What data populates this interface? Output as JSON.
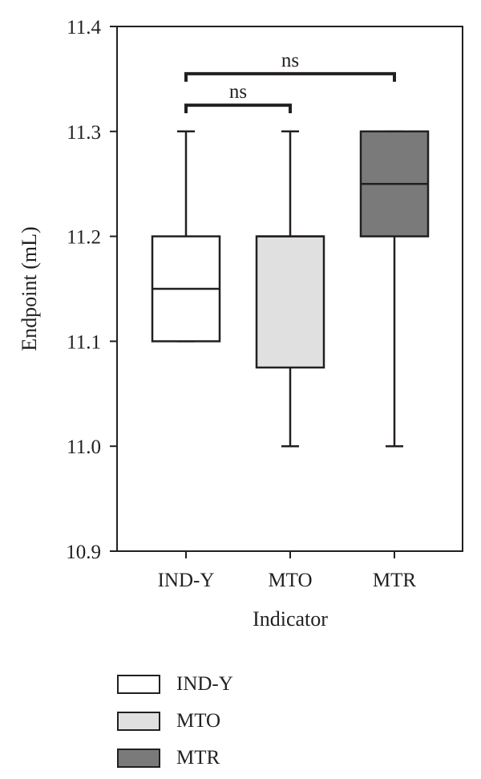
{
  "chart_data": {
    "type": "box",
    "ylabel": "Endpoint (mL)",
    "xlabel": "Indicator",
    "ylim": [
      10.9,
      11.4
    ],
    "yticks": [
      "10.9",
      "11.0",
      "11.1",
      "11.2",
      "11.3",
      "11.4"
    ],
    "yticks_values": [
      10.9,
      11.0,
      11.1,
      11.2,
      11.3,
      11.4
    ],
    "categories": [
      "IND-Y",
      "MTO",
      "MTR"
    ],
    "boxes": [
      {
        "category": "IND-Y",
        "min": 11.1,
        "q1": 11.1,
        "median": 11.15,
        "q3": 11.2,
        "max": 11.3,
        "color": "#ffffff"
      },
      {
        "category": "MTO",
        "min": 11.0,
        "q1": 11.075,
        "median": 11.2,
        "q3": 11.2,
        "max": 11.3,
        "color": "#e0e0e0"
      },
      {
        "category": "MTR",
        "min": 11.0,
        "q1": 11.2,
        "median": 11.25,
        "q3": 11.3,
        "max": 11.3,
        "color": "#7a7a7a"
      }
    ],
    "annotations": [
      {
        "from": "IND-Y",
        "to": "MTR",
        "label": "ns",
        "y": 11.355
      },
      {
        "from": "IND-Y",
        "to": "MTO",
        "label": "ns",
        "y": 11.325
      }
    ],
    "legend": {
      "position": "bottom-left",
      "entries": [
        {
          "label": "IND-Y",
          "color": "#ffffff"
        },
        {
          "label": "MTO",
          "color": "#e0e0e0"
        },
        {
          "label": "MTR",
          "color": "#7a7a7a"
        }
      ]
    },
    "grid": false
  }
}
